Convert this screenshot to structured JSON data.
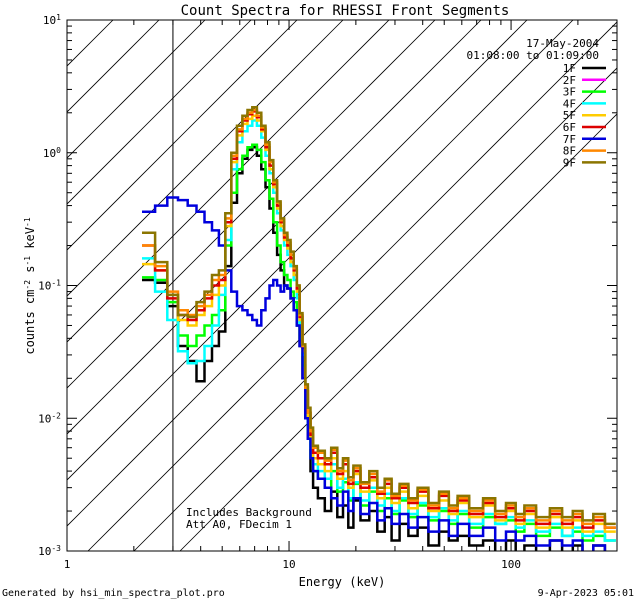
{
  "chart_data": {
    "type": "line",
    "title": "Count Spectra for RHESSI Front Segments",
    "xlabel": "Energy (keV)",
    "ylabel": "counts cm-2 s-1 keV-1",
    "ylabel_parts": {
      "base": "counts cm",
      "e1": "-2",
      "mid1": " s",
      "e2": "-1",
      "mid2": " keV",
      "e3": "-1"
    },
    "xscale": "log",
    "yscale": "log",
    "xlim": [
      1,
      300
    ],
    "ylim": [
      0.001,
      10
    ],
    "x_ticks": [
      {
        "value": 1,
        "label": "1"
      },
      {
        "value": 10,
        "label": "10"
      },
      {
        "value": 100,
        "label": "100"
      }
    ],
    "y_ticks": [
      {
        "value": 0.001,
        "base": "10",
        "exp": "-3"
      },
      {
        "value": 0.01,
        "base": "10",
        "exp": "-2"
      },
      {
        "value": 0.1,
        "base": "10",
        "exp": "-1"
      },
      {
        "value": 1,
        "base": "10",
        "exp": "0"
      },
      {
        "value": 10,
        "base": "10",
        "exp": "1"
      }
    ],
    "hatched_region": {
      "x": [
        1,
        3
      ]
    },
    "date": "17-May-2004",
    "time_range": "01:08:00 to 01:09:00",
    "notes": [
      "Includes Background",
      "Att A0, FDecim 1"
    ],
    "legend_position": "top-right",
    "energies": [
      2.33,
      2.67,
      3.0,
      3.33,
      3.67,
      4.0,
      4.33,
      4.67,
      5.0,
      5.33,
      5.67,
      6.0,
      6.33,
      6.67,
      7.0,
      7.33,
      7.67,
      8.0,
      8.33,
      8.67,
      9.0,
      9.33,
      9.67,
      10.0,
      10.33,
      10.67,
      11.0,
      11.33,
      11.67,
      12.0,
      12.33,
      12.67,
      13.0,
      14,
      15,
      16,
      17,
      18,
      19,
      20,
      22,
      24,
      26,
      28,
      30,
      33,
      36,
      40,
      45,
      50,
      55,
      60,
      70,
      80,
      90,
      100,
      110,
      120,
      140,
      160,
      180,
      200,
      220,
      250,
      280
    ],
    "series": [
      {
        "name": "1F",
        "color": "#000000",
        "values": [
          0.11,
          0.105,
          0.07,
          0.035,
          0.027,
          0.019,
          0.027,
          0.035,
          0.045,
          0.14,
          0.42,
          0.7,
          0.9,
          1.05,
          1.1,
          0.95,
          0.75,
          0.55,
          0.38,
          0.25,
          0.17,
          0.13,
          0.1,
          0.095,
          0.08,
          0.065,
          0.05,
          0.035,
          0.02,
          0.01,
          0.007,
          0.004,
          0.003,
          0.0025,
          0.002,
          0.0028,
          0.0018,
          0.0022,
          0.0015,
          0.0024,
          0.0017,
          0.002,
          0.0014,
          0.0018,
          0.0012,
          0.0016,
          0.0013,
          0.0015,
          0.0011,
          0.0014,
          0.0012,
          0.0013,
          0.0011,
          0.0012,
          0.001,
          0.0012,
          0.001,
          0.0011,
          0.001,
          0.0012,
          0.001,
          0.0011,
          0.001,
          0.0011,
          0.001
        ]
      },
      {
        "name": "2F",
        "color": "#ff00ff",
        "values": [
          null,
          null,
          null,
          null,
          null,
          null,
          null,
          null,
          null,
          null,
          null,
          null,
          null,
          null,
          null,
          null,
          null,
          null,
          null,
          null,
          null,
          null,
          null,
          null,
          null,
          null,
          null,
          null,
          null,
          null,
          null,
          null,
          null,
          null,
          null,
          null,
          null,
          null,
          null,
          null,
          null,
          null,
          null,
          null,
          null,
          null,
          null,
          null,
          null,
          null,
          null,
          null,
          null,
          null,
          null,
          null,
          null,
          null,
          null,
          null,
          null,
          null,
          null,
          null,
          null
        ]
      },
      {
        "name": "3F",
        "color": "#00ff00",
        "values": [
          0.115,
          0.11,
          0.075,
          0.042,
          0.035,
          0.042,
          0.05,
          0.06,
          0.065,
          0.2,
          0.5,
          0.75,
          0.95,
          1.1,
          1.15,
          1.05,
          0.85,
          0.62,
          0.45,
          0.3,
          0.2,
          0.15,
          0.12,
          0.11,
          0.09,
          0.075,
          0.06,
          0.04,
          0.025,
          0.012,
          0.008,
          0.005,
          0.004,
          0.0035,
          0.003,
          0.004,
          0.0028,
          0.0033,
          0.0024,
          0.0032,
          0.0022,
          0.0028,
          0.002,
          0.0025,
          0.0019,
          0.0024,
          0.0018,
          0.0022,
          0.0017,
          0.002,
          0.0016,
          0.0019,
          0.0015,
          0.0018,
          0.0016,
          0.0017,
          0.0014,
          0.0016,
          0.0013,
          0.0015,
          0.0013,
          0.0014,
          0.0012,
          0.0013,
          0.0012
        ]
      },
      {
        "name": "4F",
        "color": "#00ffff",
        "values": [
          0.16,
          0.09,
          0.055,
          0.032,
          0.026,
          0.027,
          0.035,
          0.05,
          0.085,
          0.22,
          0.75,
          1.2,
          1.45,
          1.6,
          1.75,
          1.6,
          1.3,
          0.95,
          0.7,
          0.5,
          0.35,
          0.26,
          0.2,
          0.17,
          0.14,
          0.11,
          0.08,
          0.05,
          0.03,
          0.014,
          0.009,
          0.006,
          0.0045,
          0.004,
          0.0035,
          0.0045,
          0.003,
          0.0035,
          0.0025,
          0.0033,
          0.0024,
          0.003,
          0.0022,
          0.0027,
          0.002,
          0.0025,
          0.0019,
          0.0023,
          0.0018,
          0.0021,
          0.0017,
          0.002,
          0.0016,
          0.0019,
          0.0016,
          0.0018,
          0.0015,
          0.0017,
          0.0014,
          0.0016,
          0.0013,
          0.0015,
          0.0013,
          0.0014,
          0.0012
        ]
      },
      {
        "name": "5F",
        "color": "#ffcc00",
        "values": [
          0.145,
          0.13,
          0.085,
          0.055,
          0.05,
          0.06,
          0.07,
          0.085,
          0.1,
          0.28,
          0.85,
          1.35,
          1.65,
          1.8,
          1.9,
          1.75,
          1.45,
          1.05,
          0.75,
          0.55,
          0.38,
          0.28,
          0.22,
          0.19,
          0.15,
          0.12,
          0.09,
          0.055,
          0.032,
          0.015,
          0.01,
          0.007,
          0.005,
          0.0045,
          0.004,
          0.005,
          0.0035,
          0.004,
          0.003,
          0.0038,
          0.0028,
          0.0034,
          0.0025,
          0.003,
          0.0023,
          0.0028,
          0.0021,
          0.0026,
          0.002,
          0.0024,
          0.0019,
          0.0023,
          0.0018,
          0.0022,
          0.0017,
          0.002,
          0.0016,
          0.0019,
          0.0015,
          0.0018,
          0.0015,
          0.0017,
          0.0014,
          0.0016,
          0.0014
        ]
      },
      {
        "name": "6F",
        "color": "#dd0000",
        "values": [
          0.2,
          0.13,
          0.08,
          0.06,
          0.055,
          0.065,
          0.08,
          0.1,
          0.11,
          0.3,
          0.9,
          1.45,
          1.75,
          1.95,
          2.05,
          1.85,
          1.5,
          1.1,
          0.8,
          0.58,
          0.4,
          0.3,
          0.23,
          0.2,
          0.16,
          0.13,
          0.095,
          0.058,
          0.034,
          0.016,
          0.011,
          0.0075,
          0.0055,
          0.005,
          0.0045,
          0.0055,
          0.0038,
          0.0045,
          0.0032,
          0.004,
          0.003,
          0.0036,
          0.0027,
          0.0032,
          0.0025,
          0.003,
          0.0023,
          0.0028,
          0.0021,
          0.0026,
          0.002,
          0.0024,
          0.0019,
          0.0023,
          0.0018,
          0.0021,
          0.0017,
          0.002,
          0.0016,
          0.0019,
          0.0016,
          0.0018,
          0.0015,
          0.0017,
          0.0015
        ]
      },
      {
        "name": "7F",
        "color": "#0000dd",
        "values": [
          0.36,
          0.4,
          0.46,
          0.44,
          0.4,
          0.36,
          0.3,
          0.26,
          0.2,
          0.13,
          0.09,
          0.07,
          0.065,
          0.06,
          0.055,
          0.05,
          0.065,
          0.08,
          0.1,
          0.11,
          0.1,
          0.09,
          0.1,
          0.095,
          0.08,
          0.065,
          0.05,
          0.035,
          0.02,
          0.01,
          0.007,
          0.005,
          0.004,
          0.0035,
          0.003,
          0.0025,
          0.0022,
          0.0028,
          0.002,
          0.0025,
          0.0019,
          0.0023,
          0.0017,
          0.0021,
          0.0016,
          0.0019,
          0.0015,
          0.0018,
          0.0014,
          0.0017,
          0.0013,
          0.0016,
          0.0013,
          0.0015,
          0.0012,
          0.0014,
          0.0012,
          0.0013,
          0.0011,
          0.0012,
          0.0011,
          0.0012,
          0.001,
          0.0011,
          0.001
        ]
      },
      {
        "name": "8F",
        "color": "#ff8800",
        "values": [
          0.2,
          0.14,
          0.09,
          0.065,
          0.06,
          0.07,
          0.085,
          0.11,
          0.12,
          0.32,
          0.95,
          1.5,
          1.8,
          2.0,
          2.1,
          1.9,
          1.55,
          1.15,
          0.85,
          0.6,
          0.42,
          0.31,
          0.24,
          0.21,
          0.17,
          0.135,
          0.1,
          0.06,
          0.035,
          0.017,
          0.011,
          0.008,
          0.006,
          0.0055,
          0.0048,
          0.0058,
          0.004,
          0.0048,
          0.0034,
          0.0042,
          0.0032,
          0.0038,
          0.0028,
          0.0034,
          0.0026,
          0.0031,
          0.0024,
          0.0029,
          0.0022,
          0.0027,
          0.0021,
          0.0025,
          0.002,
          0.0024,
          0.0019,
          0.0022,
          0.0018,
          0.0021,
          0.0017,
          0.002,
          0.0017,
          0.0019,
          0.0016,
          0.0018,
          0.0015
        ]
      },
      {
        "name": "9F",
        "color": "#8b7500",
        "values": [
          0.25,
          0.15,
          0.085,
          0.06,
          0.058,
          0.075,
          0.09,
          0.12,
          0.13,
          0.35,
          1.0,
          1.6,
          1.9,
          2.1,
          2.2,
          2.0,
          1.6,
          1.2,
          0.88,
          0.62,
          0.43,
          0.32,
          0.25,
          0.22,
          0.18,
          0.14,
          0.1,
          0.062,
          0.036,
          0.018,
          0.012,
          0.0085,
          0.0062,
          0.0057,
          0.005,
          0.006,
          0.0042,
          0.005,
          0.0036,
          0.0044,
          0.0033,
          0.004,
          0.003,
          0.0035,
          0.0027,
          0.0032,
          0.0025,
          0.003,
          0.0023,
          0.0028,
          0.0022,
          0.0026,
          0.0021,
          0.0025,
          0.002,
          0.0023,
          0.0019,
          0.0022,
          0.0018,
          0.0021,
          0.0018,
          0.002,
          0.0017,
          0.0019,
          0.0016
        ]
      }
    ]
  },
  "footer": {
    "generated_by": "Generated by hsi_min_spectra_plot.pro",
    "timestamp": "9-Apr-2023 05:01"
  }
}
